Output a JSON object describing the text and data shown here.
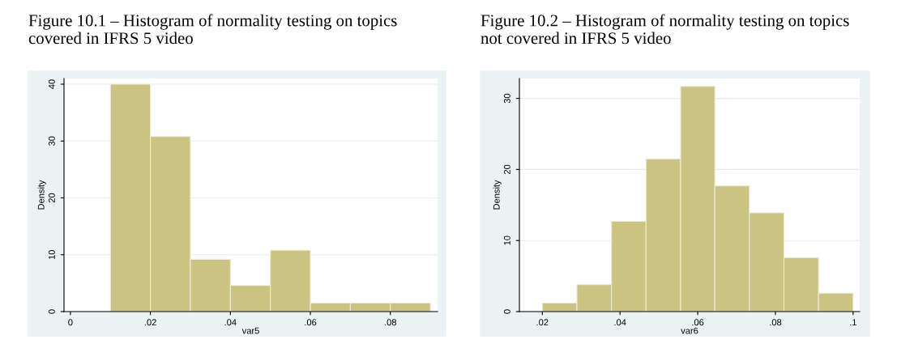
{
  "chart_data": [
    {
      "type": "histogram",
      "title": "Figure 10.1 – Histogram of normality testing on topics covered in IFRS 5 video",
      "xlabel": "var5",
      "ylabel": "Density",
      "color": "#cbc382",
      "bins": [
        0.01,
        0.02,
        0.03,
        0.04,
        0.05,
        0.06,
        0.07,
        0.08,
        0.09
      ],
      "values": [
        40,
        30.8,
        9.2,
        4.6,
        10.8,
        1.5,
        1.5,
        1.5
      ],
      "xlim": [
        -0.0016,
        0.0918
      ],
      "ylim": [
        0,
        41
      ],
      "xticks": [
        0,
        {
          "value": 0.02,
          "label": ".02"
        },
        {
          "value": 0.04,
          "label": ".04"
        },
        {
          "value": 0.06,
          "label": ".06"
        },
        {
          "value": 0.08,
          "label": ".08"
        }
      ],
      "yticks": [
        0,
        10,
        20,
        30,
        40
      ],
      "grid": "y"
    },
    {
      "type": "histogram",
      "title": "Figure 10.2 – Histogram of normality testing on topics not covered in IFRS 5 video",
      "xlabel": "var6",
      "ylabel": "Density",
      "color": "#cbc382",
      "bins": [
        0.02,
        0.0289,
        0.0378,
        0.0467,
        0.0556,
        0.0644,
        0.0733,
        0.0822,
        0.0911,
        0.1
      ],
      "values": [
        1.2,
        3.8,
        12.7,
        21.5,
        31.7,
        17.7,
        13.9,
        7.6,
        2.6
      ],
      "xlim": [
        0.0141,
        0.1017
      ],
      "ylim": [
        0,
        32.8
      ],
      "xticks": [
        {
          "value": 0.02,
          "label": ".02"
        },
        {
          "value": 0.04,
          "label": ".04"
        },
        {
          "value": 0.06,
          "label": ".06"
        },
        {
          "value": 0.08,
          "label": ".08"
        },
        {
          "value": 0.1,
          "label": ".1"
        }
      ],
      "yticks": [
        0,
        10,
        20,
        30
      ],
      "grid": "y"
    }
  ]
}
